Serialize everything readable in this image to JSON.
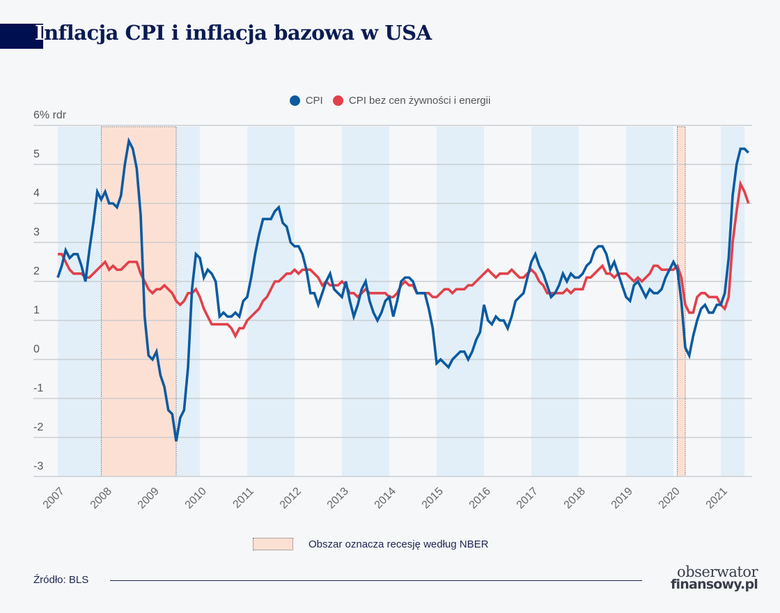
{
  "header": {
    "title_first": "I",
    "title_rest": "nflacja CPI i inflacja bazowa w USA"
  },
  "legend": {
    "items": [
      {
        "label": "CPI",
        "color": "#0b5aa0"
      },
      {
        "label": "CPI bez cen żywności i energii",
        "color": "#e2404a"
      }
    ]
  },
  "recession_legend": {
    "label": "Obszar oznacza recesję według NBER",
    "color": "#fde0d4"
  },
  "footer": {
    "source": "Źródło: BLS",
    "brand_line1": "obserwator",
    "brand_line2": "finansowy.pl"
  },
  "chart_data": {
    "type": "line",
    "title": "Inflacja CPI i inflacja bazowa w USA",
    "ylabel": "% rdr",
    "ylim": [
      -3,
      6
    ],
    "yticks": [
      -3,
      -2,
      -1,
      0,
      1,
      2,
      3,
      4,
      5,
      6
    ],
    "ytick_labels": [
      "-3",
      "-2",
      "-1",
      "0",
      "1",
      "2",
      "3",
      "4",
      "5",
      "6% rdr"
    ],
    "xlim": [
      2007,
      2021.5
    ],
    "xticks": [
      2007,
      2008,
      2009,
      2010,
      2011,
      2012,
      2013,
      2014,
      2015,
      2016,
      2017,
      2018,
      2019,
      2020,
      2021
    ],
    "x_start": "2007-01",
    "frequency": "monthly",
    "grid": true,
    "legend_position": "top-center",
    "alternating_year_bands": [
      [
        2007,
        2008
      ],
      [
        2009,
        2010
      ],
      [
        2011,
        2012
      ],
      [
        2013,
        2014
      ],
      [
        2015,
        2016
      ],
      [
        2017,
        2018
      ],
      [
        2019,
        2020
      ],
      [
        2021,
        2021.5
      ]
    ],
    "recessions": [
      {
        "start": 2007.92,
        "end": 2009.5,
        "label": "NBER recession 2007-12 to 2009-06"
      },
      {
        "start": 2020.08,
        "end": 2020.25,
        "label": "NBER recession 2020-02 to 2020-04"
      }
    ],
    "series": [
      {
        "name": "CPI",
        "color": "#0b5aa0",
        "values": [
          2.1,
          2.4,
          2.8,
          2.6,
          2.7,
          2.7,
          2.4,
          2.0,
          2.8,
          3.5,
          4.3,
          4.1,
          4.3,
          4.0,
          4.0,
          3.9,
          4.2,
          5.0,
          5.6,
          5.4,
          4.9,
          3.7,
          1.1,
          0.1,
          0.0,
          0.2,
          -0.4,
          -0.7,
          -1.3,
          -1.4,
          -2.1,
          -1.5,
          -1.3,
          -0.2,
          1.8,
          2.7,
          2.6,
          2.1,
          2.3,
          2.2,
          2.0,
          1.1,
          1.2,
          1.1,
          1.1,
          1.2,
          1.1,
          1.5,
          1.6,
          2.1,
          2.7,
          3.2,
          3.6,
          3.6,
          3.6,
          3.8,
          3.9,
          3.5,
          3.4,
          3.0,
          2.9,
          2.9,
          2.7,
          2.3,
          1.7,
          1.7,
          1.4,
          1.7,
          2.0,
          2.2,
          1.8,
          1.7,
          1.6,
          2.0,
          1.5,
          1.1,
          1.4,
          1.8,
          2.0,
          1.5,
          1.2,
          1.0,
          1.2,
          1.5,
          1.6,
          1.1,
          1.5,
          2.0,
          2.1,
          2.1,
          2.0,
          1.7,
          1.7,
          1.7,
          1.3,
          0.8,
          -0.1,
          0.0,
          -0.1,
          -0.2,
          0.0,
          0.1,
          0.2,
          0.2,
          0.0,
          0.2,
          0.5,
          0.7,
          1.4,
          1.0,
          0.9,
          1.1,
          1.0,
          1.0,
          0.8,
          1.1,
          1.5,
          1.6,
          1.7,
          2.1,
          2.5,
          2.7,
          2.4,
          2.2,
          1.9,
          1.6,
          1.7,
          1.9,
          2.2,
          2.0,
          2.2,
          2.1,
          2.1,
          2.2,
          2.4,
          2.5,
          2.8,
          2.9,
          2.9,
          2.7,
          2.3,
          2.5,
          2.2,
          1.9,
          1.6,
          1.5,
          1.9,
          2.0,
          1.8,
          1.6,
          1.8,
          1.7,
          1.7,
          1.8,
          2.1,
          2.3,
          2.5,
          2.3,
          1.5,
          0.3,
          0.1,
          0.6,
          1.0,
          1.3,
          1.4,
          1.2,
          1.2,
          1.4,
          1.4,
          1.7,
          2.6,
          4.2,
          5.0,
          5.4,
          5.4,
          5.3
        ]
      },
      {
        "name": "CPI bez cen żywności i energii",
        "color": "#e2404a",
        "values": [
          2.7,
          2.7,
          2.5,
          2.3,
          2.2,
          2.2,
          2.2,
          2.1,
          2.1,
          2.2,
          2.3,
          2.4,
          2.5,
          2.3,
          2.4,
          2.3,
          2.3,
          2.4,
          2.5,
          2.5,
          2.5,
          2.2,
          2.0,
          1.8,
          1.7,
          1.8,
          1.8,
          1.9,
          1.8,
          1.7,
          1.5,
          1.4,
          1.5,
          1.7,
          1.7,
          1.8,
          1.6,
          1.3,
          1.1,
          0.9,
          0.9,
          0.9,
          0.9,
          0.9,
          0.8,
          0.6,
          0.8,
          0.8,
          1.0,
          1.1,
          1.2,
          1.3,
          1.5,
          1.6,
          1.8,
          2.0,
          2.0,
          2.1,
          2.2,
          2.2,
          2.3,
          2.2,
          2.3,
          2.3,
          2.3,
          2.2,
          2.1,
          1.9,
          2.0,
          1.9,
          1.9,
          1.9,
          2.0,
          1.9,
          1.7,
          1.7,
          1.6,
          1.7,
          1.8,
          1.7,
          1.7,
          1.7,
          1.7,
          1.7,
          1.6,
          1.6,
          1.7,
          1.9,
          2.0,
          1.9,
          1.9,
          1.7,
          1.7,
          1.7,
          1.7,
          1.6,
          1.6,
          1.7,
          1.8,
          1.8,
          1.7,
          1.8,
          1.8,
          1.8,
          1.9,
          1.9,
          2.0,
          2.1,
          2.2,
          2.3,
          2.2,
          2.1,
          2.2,
          2.2,
          2.2,
          2.3,
          2.2,
          2.1,
          2.1,
          2.2,
          2.3,
          2.2,
          2.0,
          1.9,
          1.7,
          1.7,
          1.7,
          1.7,
          1.7,
          1.8,
          1.7,
          1.8,
          1.8,
          1.8,
          2.1,
          2.1,
          2.2,
          2.3,
          2.4,
          2.2,
          2.2,
          2.1,
          2.2,
          2.2,
          2.2,
          2.1,
          2.0,
          2.1,
          2.0,
          2.1,
          2.2,
          2.4,
          2.4,
          2.3,
          2.3,
          2.3,
          2.3,
          2.4,
          2.1,
          1.4,
          1.2,
          1.2,
          1.6,
          1.7,
          1.7,
          1.6,
          1.6,
          1.6,
          1.4,
          1.3,
          1.6,
          3.0,
          3.8,
          4.5,
          4.3,
          4.0
        ]
      }
    ]
  }
}
